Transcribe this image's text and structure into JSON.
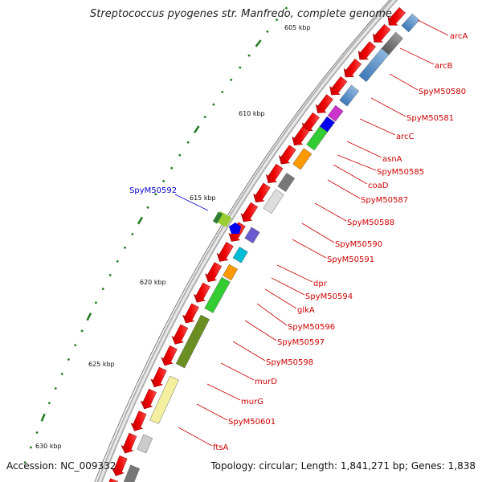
{
  "title": "Streptococcus pyogenes str. Manfredo, complete genome",
  "footer": {
    "accession": "Accession: NC_009332",
    "summary": "Topology: circular; Length: 1,841,271 bp; Genes: 1,838"
  },
  "axis": {
    "ticks": [
      {
        "label": "605 kbp"
      },
      {
        "label": "610 kbp"
      },
      {
        "label": "615 kbp"
      },
      {
        "label": "620 kbp"
      },
      {
        "label": "625 kbp"
      },
      {
        "label": "630 kbp"
      }
    ]
  },
  "gene_labels": {
    "right": [
      "arcA",
      "arcB",
      "SpyM50580",
      "SpyM50581",
      "arcC",
      "asnA",
      "SpyM50585",
      "coaD",
      "SpyM50587",
      "SpyM50588",
      "SpyM50590",
      "SpyM50591",
      "dpr",
      "SpyM50594",
      "glkA",
      "SpyM50596",
      "SpyM50597",
      "SpyM50598",
      "murD",
      "murG",
      "SpyM50601",
      "ftsA"
    ],
    "left": [
      "SpyM50592"
    ]
  },
  "colors": {
    "forward_label": "#cc0000",
    "reverse_label": "#0000cc",
    "tick": "#1f7a1f",
    "arrow": "#ee0000",
    "backbone": "#888888"
  }
}
